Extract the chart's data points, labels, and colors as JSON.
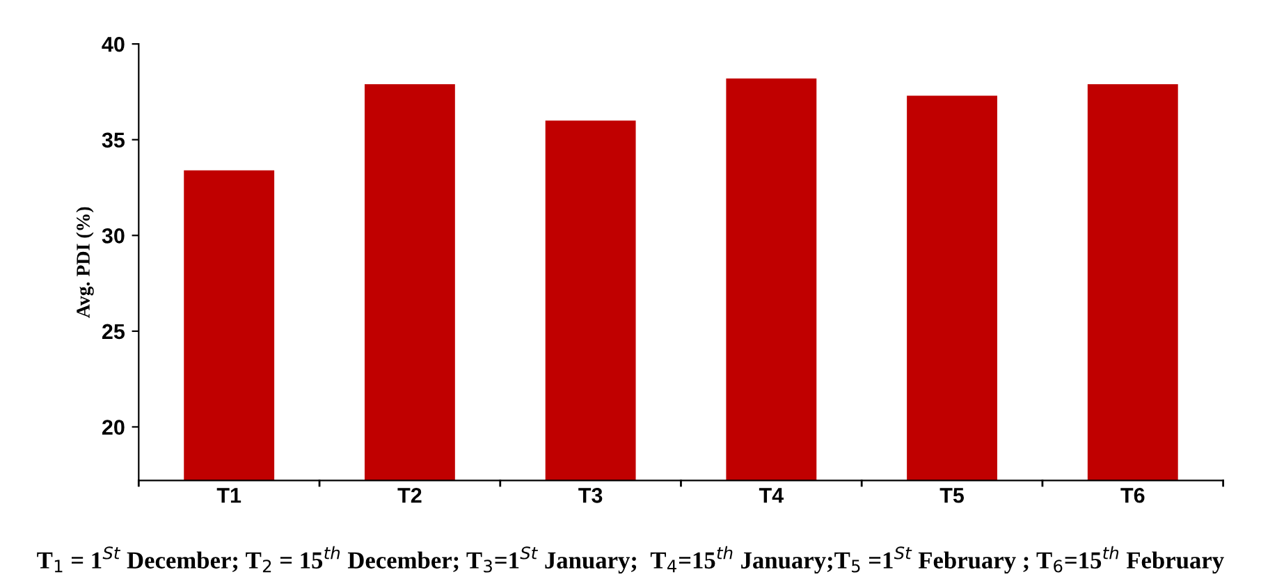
{
  "chart_data": {
    "type": "bar",
    "ylabel": "Avg. PDI (%)",
    "categories": [
      "T1",
      "T2",
      "T3",
      "T4",
      "T5",
      "T6"
    ],
    "series": [
      {
        "color": "#c00000",
        "values": [
          33.4,
          37.9,
          36.0,
          38.2,
          37.3,
          37.9
        ]
      }
    ],
    "ylim": [
      17.2,
      40
    ],
    "yticks": [
      20,
      25,
      30,
      35,
      40
    ],
    "grid": false,
    "legend": false,
    "annotations": [
      "T$_{1}$ = 1$^{St}$ December; T$_{2}$ = 15$^{th}$ December; T$_{3}$=1$^{St}$ January;  T$_{4}$=15$^{th}$ January;T$_{5}$ =1$^{St}$ February ; T$_{6}$=15$^{th}$ February"
    ]
  }
}
